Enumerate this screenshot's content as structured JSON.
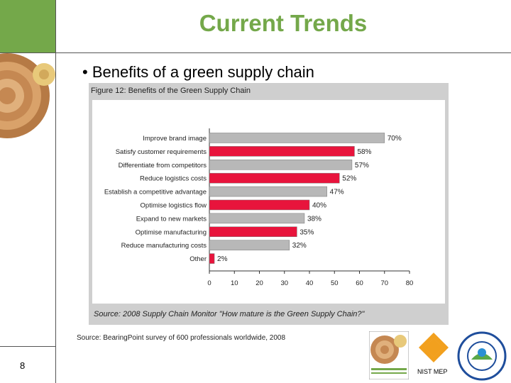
{
  "slide": {
    "title": "Current Trends",
    "bullet": "• Benefits of a green supply chain",
    "source": "Source: BearingPoint survey of 600 professionals worldwide, 2008",
    "page_number": "8",
    "nist_label": "NIST MEP",
    "colors": {
      "title": "#74a84a",
      "grey_bar": "#b8b8b8",
      "red_bar": "#e8143c"
    }
  },
  "chart_data": {
    "type": "bar",
    "orientation": "horizontal",
    "title": "Figure 12: Benefits of the Green Supply Chain",
    "source_note": "Source: 2008 Supply Chain Monitor \"How mature is the Green Supply Chain?\"",
    "categories": [
      "Improve brand image",
      "Satisfy customer requirements",
      "Differentiate from competitors",
      "Reduce logistics costs",
      "Establish a competitive advantage",
      "Optimise logistics flow",
      "Expand to new markets",
      "Optimise manufacturing",
      "Reduce manufacturing costs",
      "Other"
    ],
    "values": [
      70,
      58,
      57,
      52,
      47,
      40,
      38,
      35,
      32,
      2
    ],
    "value_labels": [
      "70%",
      "58%",
      "57%",
      "52%",
      "47%",
      "40%",
      "38%",
      "35%",
      "32%",
      "2%"
    ],
    "bar_colors": [
      "#b8b8b8",
      "#e8143c",
      "#b8b8b8",
      "#e8143c",
      "#b8b8b8",
      "#e8143c",
      "#b8b8b8",
      "#e8143c",
      "#b8b8b8",
      "#e8143c"
    ],
    "xlim": [
      0,
      80
    ],
    "xticks": [
      0,
      10,
      20,
      30,
      40,
      50,
      60,
      70,
      80
    ],
    "grid": false
  }
}
